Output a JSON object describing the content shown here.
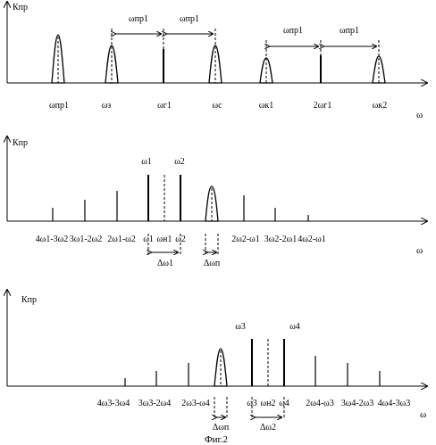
{
  "figure_caption": "Фиг.2",
  "panel1": {
    "y_axis": "Кпр",
    "x_axis": "ω",
    "ticks": [
      "ωпр1",
      "ωз",
      "ωг1",
      "ωс",
      "ωк1",
      "2ωг1",
      "ωк2"
    ],
    "spans": [
      "ωпр1",
      "ωпр1",
      "ωпр1",
      "ωпр1"
    ]
  },
  "panel2": {
    "y_axis": "Кпр",
    "x_axis": "ω",
    "ticks": [
      "4ω1-3ω2",
      "3ω1-2ω2",
      "2ω1-ω2",
      "ω1",
      "ωн1",
      "ω2",
      "2ω2-ω1",
      "3ω2-2ω1",
      "4ω2-ω1"
    ],
    "top_labels": [
      "ω1",
      "ω2"
    ],
    "bottom_labels": [
      "Δω1",
      "Δωп"
    ]
  },
  "panel3": {
    "y_axis": "Кпр",
    "x_axis": "ω",
    "ticks": [
      "4ω3-3ω4",
      "3ω3-2ω4",
      "2ω3-ω4",
      "ω3",
      "ωн2",
      "ω4",
      "2ω4-ω3",
      "3ω4-2ω3",
      "4ω4-3ω3"
    ],
    "top_labels": [
      "ω3",
      "ω4"
    ],
    "bottom_labels": [
      "Δωп",
      "Δω2"
    ]
  }
}
